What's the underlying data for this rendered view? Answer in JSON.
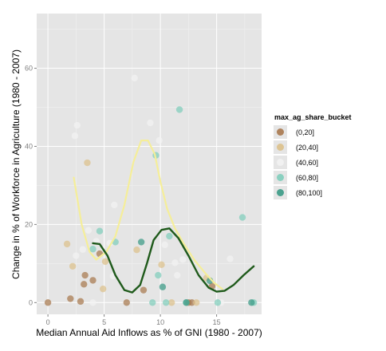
{
  "chart_data": {
    "type": "scatter",
    "title": "",
    "xlabel": "Median Annual Aid Inflows as % of GNI (1980 - 2007)",
    "ylabel": "Change in % of Workforce in Agriculture (1980 - 2007)",
    "xlim": [
      -1,
      19.0
    ],
    "ylim": [
      -3,
      74
    ],
    "x_ticks": [
      0,
      5,
      10,
      15
    ],
    "y_ticks": [
      0,
      20,
      40,
      60
    ],
    "x_tick_labels": [
      "0",
      "5",
      "10",
      "15"
    ],
    "y_tick_labels": [
      "0",
      "20",
      "40",
      "60"
    ],
    "grid": true,
    "legend_placement": "right",
    "legend": {
      "title": "max_ag_share_bucket",
      "entries": [
        {
          "label": "(0,20]",
          "color": "#a8784e"
        },
        {
          "label": "(20,40]",
          "color": "#dcc08a"
        },
        {
          "label": "(40,60]",
          "color": "#f2f2f2"
        },
        {
          "label": "(60,80]",
          "color": "#7fcdbb"
        },
        {
          "label": "(80,100]",
          "color": "#3a9a85"
        }
      ]
    },
    "series": [
      {
        "bucket": "(0,20]",
        "color": "#a8784e",
        "points": [
          [
            0.0,
            0.0
          ],
          [
            2.0,
            1.0
          ],
          [
            2.9,
            0.3
          ],
          [
            3.2,
            4.7
          ],
          [
            3.3,
            7.0
          ],
          [
            4.0,
            5.7
          ],
          [
            4.6,
            12.5
          ],
          [
            7.0,
            0.0
          ],
          [
            8.5,
            3.2
          ],
          [
            12.5,
            0.0
          ],
          [
            12.8,
            0.0
          ],
          [
            14.6,
            4.2
          ]
        ]
      },
      {
        "bucket": "(20,40]",
        "color": "#dcc08a",
        "points": [
          [
            1.7,
            15.0
          ],
          [
            2.2,
            9.3
          ],
          [
            3.5,
            35.8
          ],
          [
            4.9,
            3.5
          ],
          [
            5.1,
            10.5
          ],
          [
            7.9,
            13.5
          ],
          [
            10.1,
            9.7
          ],
          [
            11.0,
            0.0
          ],
          [
            13.2,
            0.0
          ],
          [
            14.1,
            6.3
          ]
        ]
      },
      {
        "bucket": "(40,60]",
        "color": "#f2f2f2",
        "points": [
          [
            2.4,
            42.7
          ],
          [
            2.6,
            45.4
          ],
          [
            2.5,
            12.0
          ],
          [
            3.1,
            13.6
          ],
          [
            3.6,
            18.5
          ],
          [
            4.0,
            0.0
          ],
          [
            4.3,
            15.7
          ],
          [
            5.5,
            15.2
          ],
          [
            5.8,
            6.8
          ],
          [
            5.9,
            25.0
          ],
          [
            7.7,
            57.5
          ],
          [
            9.1,
            46.0
          ],
          [
            9.9,
            41.5
          ],
          [
            10.4,
            14.8
          ],
          [
            11.3,
            10.2
          ],
          [
            11.5,
            7.0
          ],
          [
            12.0,
            11.0
          ],
          [
            16.2,
            11.2
          ],
          [
            15.4,
            0.0
          ]
        ]
      },
      {
        "bucket": "(60,80]",
        "color": "#7fcdbb",
        "points": [
          [
            4.0,
            13.7
          ],
          [
            4.6,
            18.3
          ],
          [
            6.0,
            15.5
          ],
          [
            9.3,
            0.0
          ],
          [
            9.6,
            37.7
          ],
          [
            9.8,
            7.0
          ],
          [
            10.5,
            0.0
          ],
          [
            10.8,
            17.0
          ],
          [
            11.7,
            49.4
          ],
          [
            12.3,
            0.0
          ],
          [
            15.1,
            0.0
          ],
          [
            17.3,
            21.8
          ],
          [
            18.3,
            0.0
          ]
        ]
      },
      {
        "bucket": "(80,100]",
        "color": "#3a9a85",
        "points": [
          [
            8.3,
            15.5
          ],
          [
            10.2,
            4.0
          ],
          [
            12.3,
            0.0
          ],
          [
            14.4,
            5.6
          ],
          [
            18.1,
            0.0
          ]
        ]
      }
    ],
    "smooth_lines": [
      {
        "bucket": "(40,60]",
        "color": "#f5ee99",
        "width": 2.2,
        "points": [
          [
            2.3,
            32
          ],
          [
            3.0,
            20
          ],
          [
            3.7,
            13
          ],
          [
            4.3,
            11
          ],
          [
            5.2,
            13
          ],
          [
            6.0,
            17
          ],
          [
            6.8,
            25
          ],
          [
            7.6,
            36
          ],
          [
            8.3,
            41.5
          ],
          [
            8.9,
            41.5
          ],
          [
            9.5,
            38
          ],
          [
            10.0,
            31
          ],
          [
            10.6,
            24
          ],
          [
            11.3,
            19
          ],
          [
            12.1,
            15
          ],
          [
            13.0,
            11
          ],
          [
            14.0,
            7.5
          ],
          [
            14.8,
            5
          ],
          [
            15.5,
            3.5
          ]
        ]
      },
      {
        "bucket": "(80,100]",
        "color": "#1f5a1b",
        "width": 2.4,
        "points": [
          [
            4.0,
            15.2
          ],
          [
            4.6,
            15
          ],
          [
            5.3,
            12
          ],
          [
            6.0,
            7
          ],
          [
            6.8,
            3.2
          ],
          [
            7.5,
            2.6
          ],
          [
            8.2,
            4.5
          ],
          [
            8.8,
            10
          ],
          [
            9.4,
            16
          ],
          [
            10.1,
            18.6
          ],
          [
            10.8,
            19
          ],
          [
            11.6,
            16.5
          ],
          [
            12.5,
            12
          ],
          [
            13.4,
            7
          ],
          [
            14.3,
            3.8
          ],
          [
            15.0,
            2.8
          ],
          [
            15.7,
            3
          ],
          [
            16.5,
            4.5
          ],
          [
            17.4,
            7
          ],
          [
            18.3,
            9.3
          ]
        ]
      }
    ]
  }
}
